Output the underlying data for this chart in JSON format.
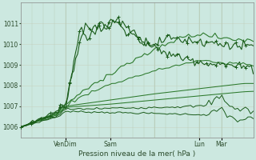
{
  "bg_color": "#cce8e0",
  "grid_color_v": "#b8ccb8",
  "grid_color_h": "#c8d8c8",
  "line_dark": "#1a5c1a",
  "line_mid": "#2d7a2d",
  "xlabel": "Pression niveau de la mer( hPa )",
  "ylim": [
    1005.5,
    1012.0
  ],
  "xlim": [
    0,
    125
  ],
  "yticks": [
    1006,
    1007,
    1008,
    1009,
    1010,
    1011
  ],
  "xtick_pos": [
    24,
    48,
    96,
    108
  ],
  "xtick_labels": [
    "VenDim",
    "Sam",
    "Lun",
    "Mar"
  ]
}
